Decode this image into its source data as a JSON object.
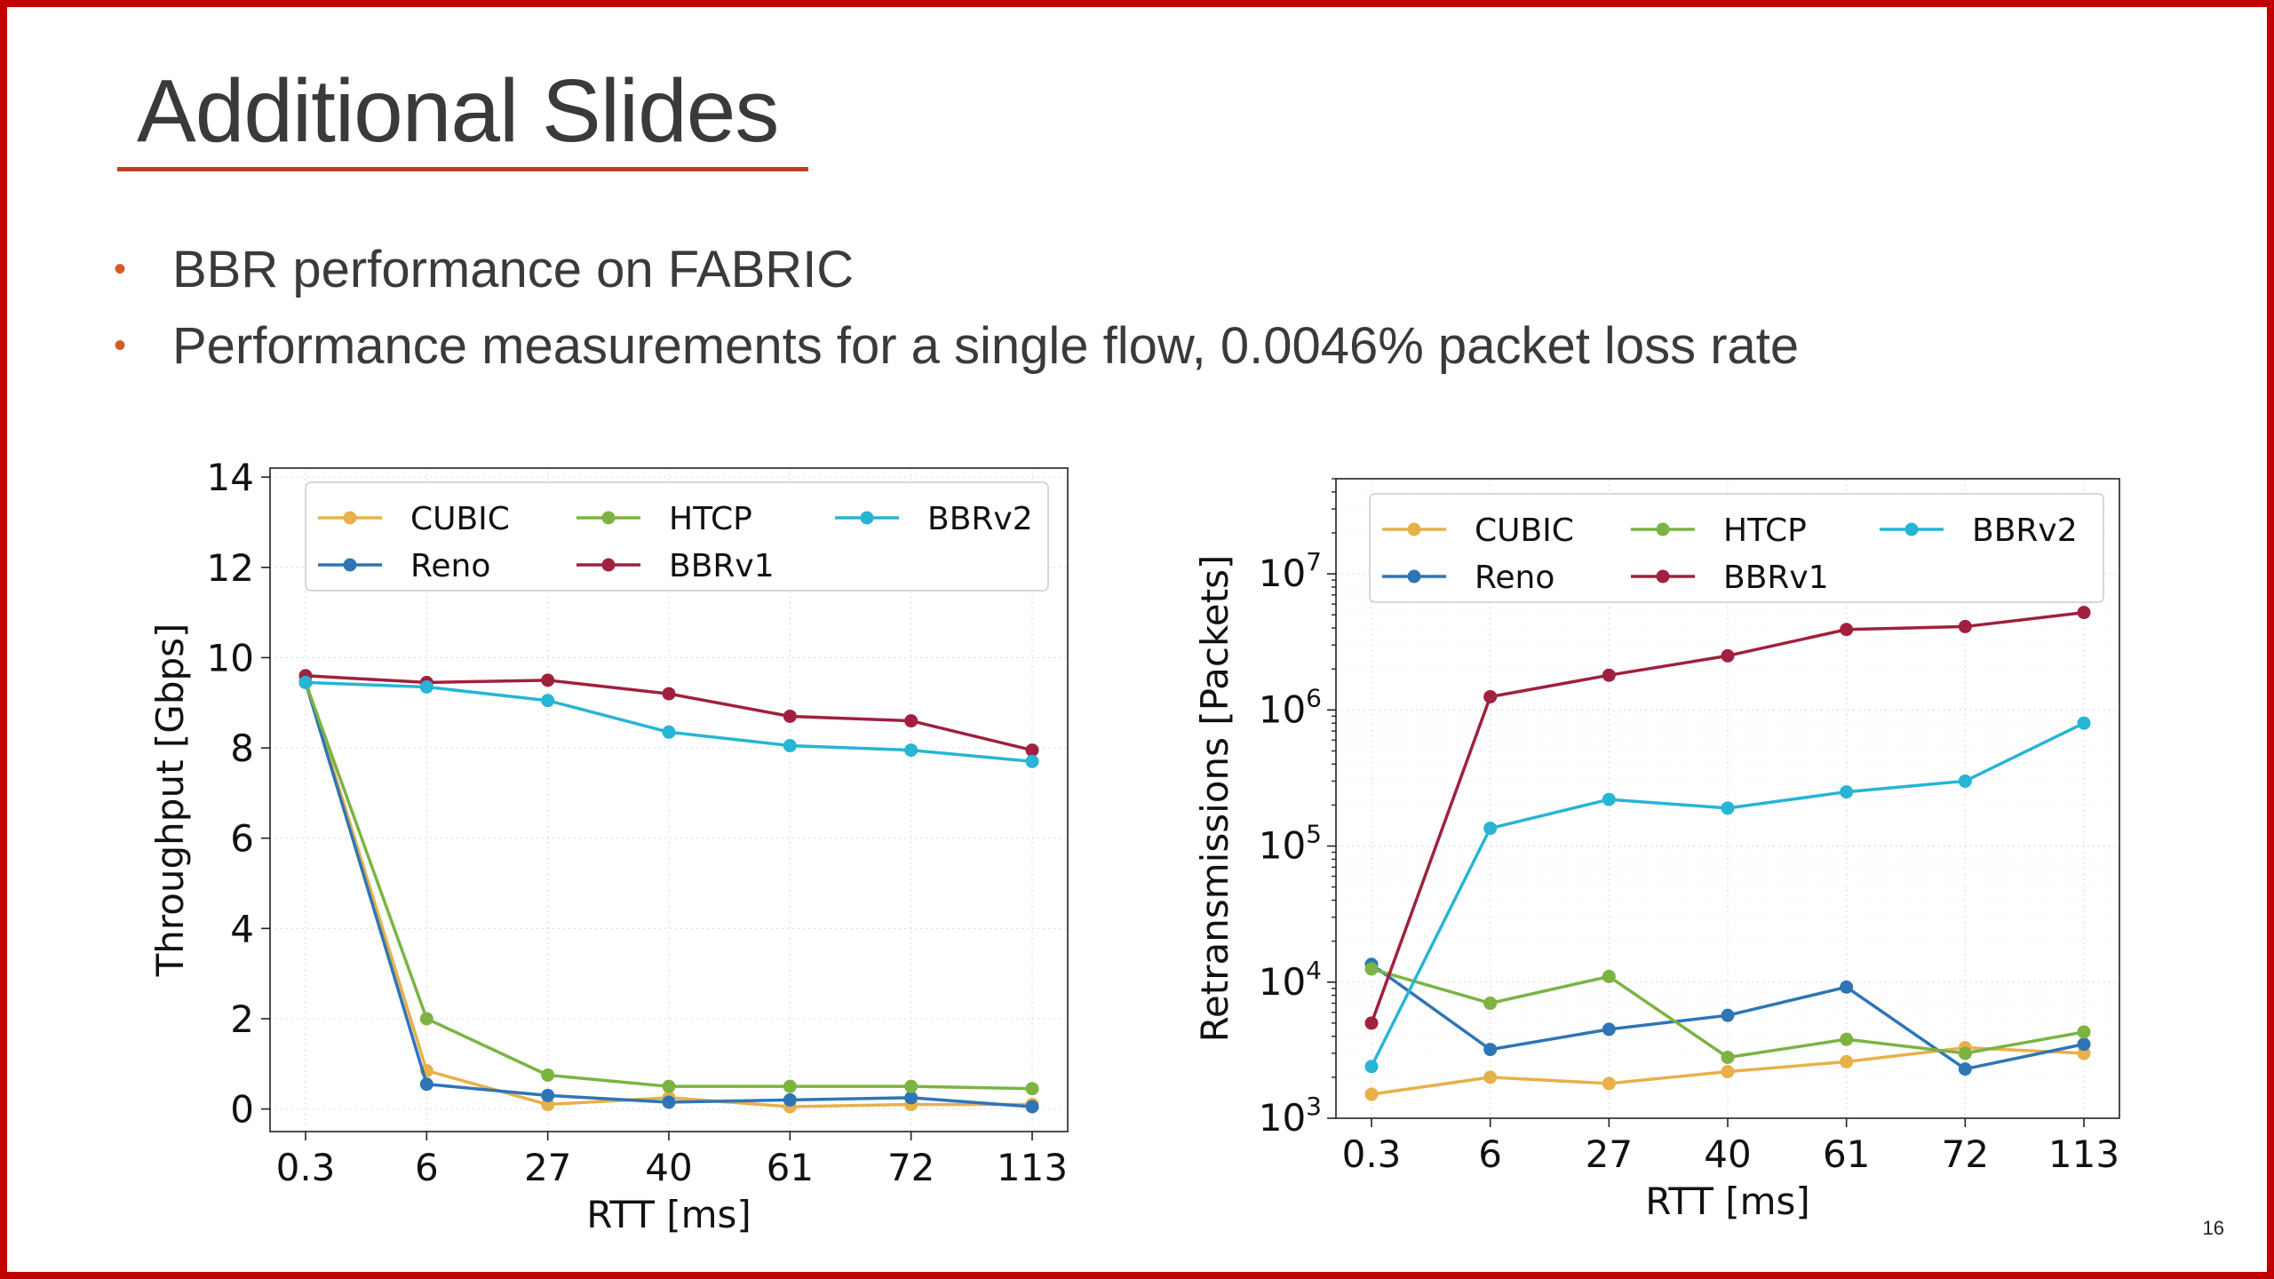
{
  "slide": {
    "title": "Additional Slides",
    "bullets": [
      "BBR performance on FABRIC",
      "Performance measurements for a single flow, 0.0046% packet loss rate"
    ],
    "page_number": "16",
    "bullet_glyph": "•",
    "colors": {
      "border": "#c00000",
      "accent": "#d55a25"
    }
  },
  "chart_data": [
    {
      "type": "line",
      "x_scale": "categorical",
      "y_scale": "linear",
      "categories": [
        "0.3",
        "6",
        "27",
        "40",
        "61",
        "72",
        "113"
      ],
      "xlabel": "RTT [ms]",
      "ylabel": "Throughput [Gbps]",
      "ylim": [
        -0.5,
        14.2
      ],
      "yticks": [
        0,
        2,
        4,
        6,
        8,
        10,
        12,
        14
      ],
      "ytick_labels": [
        "0",
        "2",
        "4",
        "6",
        "8",
        "10",
        "12",
        "14"
      ],
      "grid": true,
      "legend": {
        "position": "top",
        "columns": 3
      },
      "series": [
        {
          "name": "CUBIC",
          "color": "#e8b04a",
          "values": [
            9.5,
            0.85,
            0.1,
            0.25,
            0.05,
            0.1,
            0.1
          ]
        },
        {
          "name": "Reno",
          "color": "#2e75b6",
          "values": [
            9.45,
            0.55,
            0.3,
            0.15,
            0.2,
            0.25,
            0.05
          ]
        },
        {
          "name": "HTCP",
          "color": "#7cb342",
          "values": [
            9.45,
            2.0,
            0.75,
            0.5,
            0.5,
            0.5,
            0.45
          ]
        },
        {
          "name": "BBRv1",
          "color": "#a0203e",
          "values": [
            9.6,
            9.45,
            9.5,
            9.2,
            8.7,
            8.6,
            7.95
          ]
        },
        {
          "name": "BBRv2",
          "color": "#26b5d5",
          "values": [
            9.45,
            9.35,
            9.05,
            8.35,
            8.05,
            7.95,
            7.7
          ]
        }
      ]
    },
    {
      "type": "line",
      "x_scale": "categorical",
      "y_scale": "log",
      "categories": [
        "0.3",
        "6",
        "27",
        "40",
        "61",
        "72",
        "113"
      ],
      "xlabel": "RTT [ms]",
      "ylabel": "Retransmissions [Packets]",
      "ylim": [
        1000,
        50000000
      ],
      "yticks": [
        1000,
        10000,
        100000,
        1000000,
        10000000
      ],
      "ytick_labels": [
        {
          "base": "10",
          "exp": "3"
        },
        {
          "base": "10",
          "exp": "4"
        },
        {
          "base": "10",
          "exp": "5"
        },
        {
          "base": "10",
          "exp": "6"
        },
        {
          "base": "10",
          "exp": "7"
        }
      ],
      "grid": true,
      "legend": {
        "position": "top",
        "columns": 3
      },
      "series": [
        {
          "name": "CUBIC",
          "color": "#e8b04a",
          "values": [
            1500,
            2000,
            1800,
            2200,
            2600,
            3300,
            3000
          ]
        },
        {
          "name": "Reno",
          "color": "#2e75b6",
          "values": [
            13500,
            3200,
            4500,
            5700,
            9200,
            2300,
            3500
          ]
        },
        {
          "name": "HTCP",
          "color": "#7cb342",
          "values": [
            12500,
            7000,
            11000,
            2800,
            3800,
            3000,
            4300
          ]
        },
        {
          "name": "BBRv1",
          "color": "#a0203e",
          "values": [
            5000,
            1250000,
            1800000,
            2500000,
            3900000,
            4100000,
            5200000
          ]
        },
        {
          "name": "BBRv2",
          "color": "#26b5d5",
          "values": [
            2400,
            135000,
            220000,
            190000,
            250000,
            300000,
            800000
          ]
        }
      ]
    }
  ]
}
